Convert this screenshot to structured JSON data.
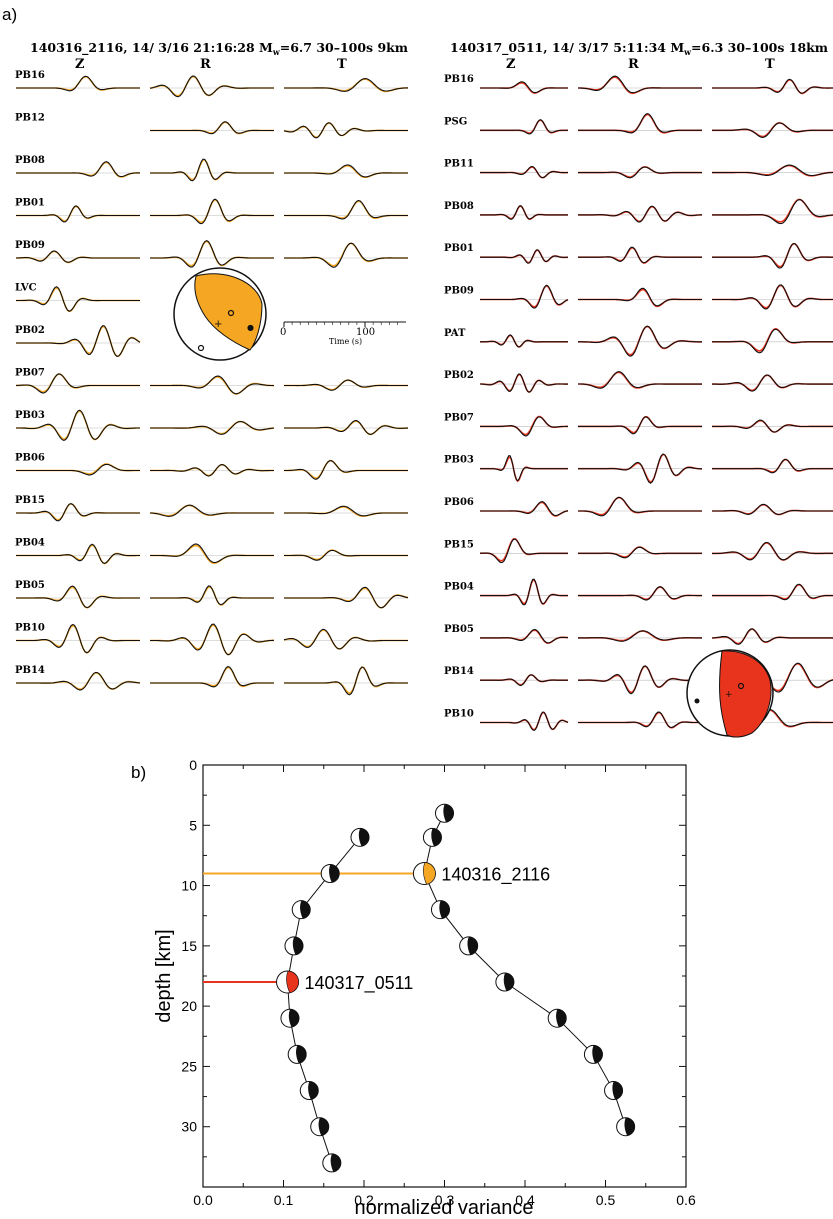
{
  "panel_a": {
    "label": "a)",
    "left": {
      "title_main": "140316_2116, 14/ 3/16 21:16:28 M",
      "title_sub": "w",
      "title_tail": "=6.7 30–100s 9km",
      "components": [
        "Z",
        "R",
        "T"
      ],
      "stations": [
        {
          "name": "PB16",
          "z": true,
          "r": true,
          "t": true
        },
        {
          "name": "PB12",
          "z": false,
          "r": true,
          "t": true
        },
        {
          "name": "PB08",
          "z": true,
          "r": true,
          "t": true
        },
        {
          "name": "PB01",
          "z": true,
          "r": true,
          "t": true
        },
        {
          "name": "PB09",
          "z": true,
          "r": true,
          "t": true
        },
        {
          "name": "LVC",
          "z": true,
          "r": false,
          "t": false
        },
        {
          "name": "PB02",
          "z": true,
          "r": false,
          "t": false
        },
        {
          "name": "PB07",
          "z": true,
          "r": true,
          "t": true
        },
        {
          "name": "PB03",
          "z": true,
          "r": true,
          "t": true
        },
        {
          "name": "PB06",
          "z": true,
          "r": true,
          "t": true
        },
        {
          "name": "PB15",
          "z": true,
          "r": true,
          "t": true
        },
        {
          "name": "PB04",
          "z": true,
          "r": true,
          "t": true
        },
        {
          "name": "PB05",
          "z": true,
          "r": true,
          "t": true
        },
        {
          "name": "PB10",
          "z": true,
          "r": true,
          "t": true
        },
        {
          "name": "PB14",
          "z": true,
          "r": true,
          "t": true
        }
      ],
      "synthetic_color": "#f5a623",
      "observed_color": "#111111",
      "time_scale": {
        "tick0": "0",
        "tick1": "100",
        "label": "Time (s)"
      }
    },
    "right": {
      "title_main": "140317_0511, 14/ 3/17 5:11:34 M",
      "title_sub": "w",
      "title_tail": "=6.3 30–100s 18km",
      "components": [
        "Z",
        "R",
        "T"
      ],
      "stations": [
        "PB16",
        "PSG",
        "PB11",
        "PB08",
        "PB01",
        "PB09",
        "PAT",
        "PB02",
        "PB07",
        "PB03",
        "PB06",
        "PB15",
        "PB04",
        "PB05",
        "PB14",
        "PB10"
      ],
      "synthetic_color": "#e8341c",
      "observed_color": "#111111"
    }
  },
  "panel_b": {
    "label": "b)",
    "chart_data": {
      "type": "scatter",
      "xlabel": "normalized variance",
      "ylabel": "depth [km]",
      "xlim": [
        0.0,
        0.6
      ],
      "ylim": [
        35,
        0
      ],
      "xticks": [
        "0.0",
        "0.1",
        "0.2",
        "0.3",
        "0.4",
        "0.5",
        "0.6"
      ],
      "yticks": [
        "0",
        "5",
        "10",
        "15",
        "20",
        "25",
        "30"
      ],
      "series": [
        {
          "name": "140317_0511",
          "color": "#e8341c",
          "best": {
            "x": 0.105,
            "depth": 18
          },
          "points": [
            {
              "depth": 6,
              "x": 0.195
            },
            {
              "depth": 9,
              "x": 0.158
            },
            {
              "depth": 12,
              "x": 0.122
            },
            {
              "depth": 15,
              "x": 0.113
            },
            {
              "depth": 18,
              "x": 0.105
            },
            {
              "depth": 21,
              "x": 0.108
            },
            {
              "depth": 24,
              "x": 0.117
            },
            {
              "depth": 27,
              "x": 0.132
            },
            {
              "depth": 30,
              "x": 0.145
            },
            {
              "depth": 33,
              "x": 0.16
            }
          ]
        },
        {
          "name": "140316_2116",
          "color": "#f5a623",
          "best": {
            "x": 0.275,
            "depth": 9
          },
          "points": [
            {
              "depth": 4,
              "x": 0.3
            },
            {
              "depth": 6,
              "x": 0.285
            },
            {
              "depth": 9,
              "x": 0.275
            },
            {
              "depth": 12,
              "x": 0.295
            },
            {
              "depth": 15,
              "x": 0.33
            },
            {
              "depth": 18,
              "x": 0.375
            },
            {
              "depth": 21,
              "x": 0.44
            },
            {
              "depth": 24,
              "x": 0.485
            },
            {
              "depth": 27,
              "x": 0.51
            },
            {
              "depth": 30,
              "x": 0.525
            }
          ]
        }
      ]
    }
  }
}
